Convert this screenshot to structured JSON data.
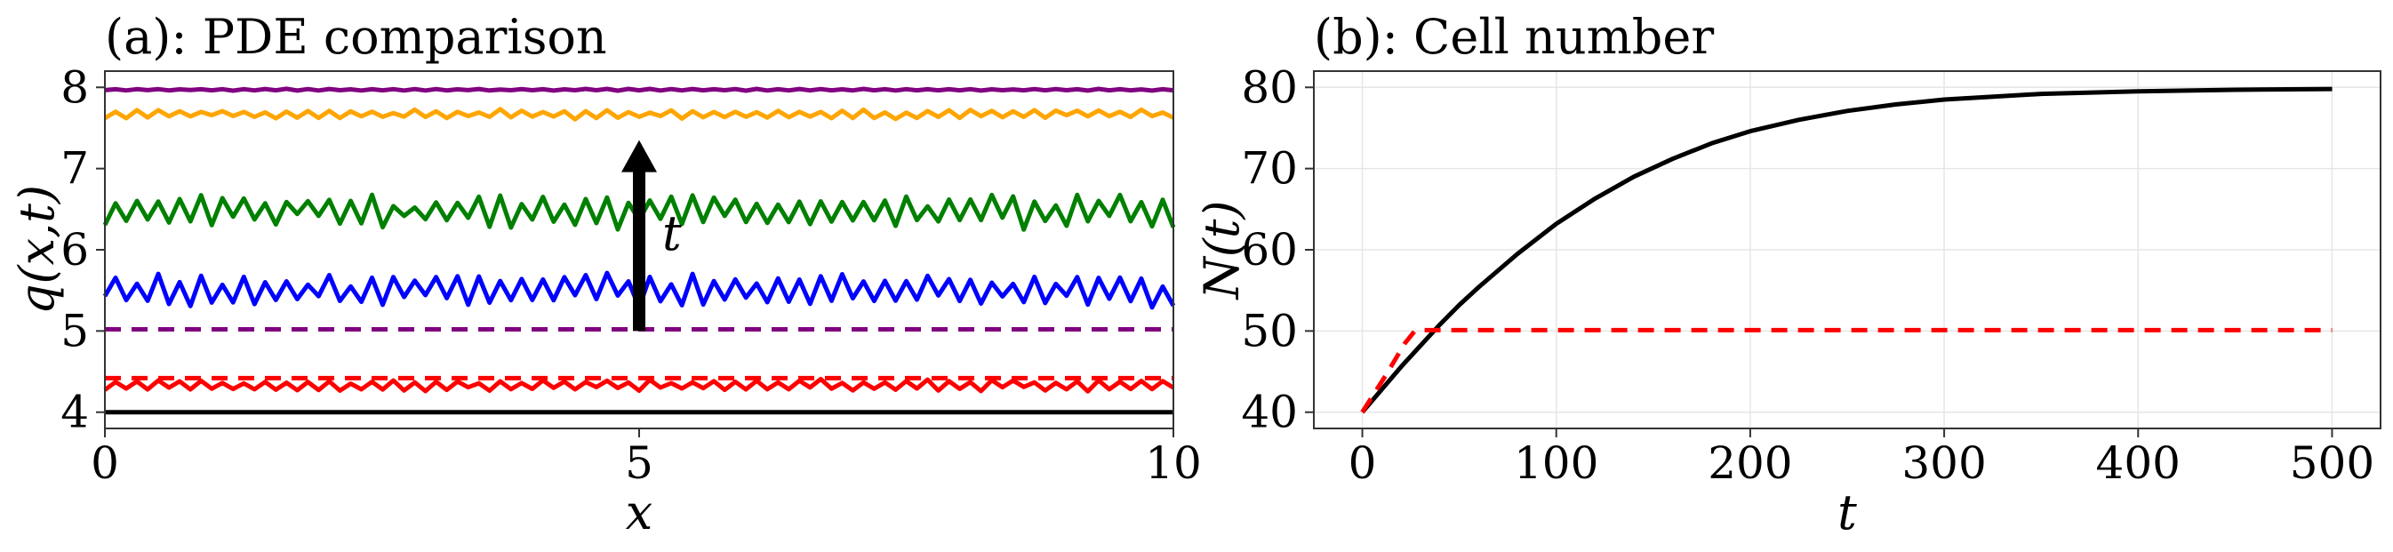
{
  "chart_data": [
    {
      "type": "line",
      "title": "(a): PDE comparison",
      "xlabel": "x",
      "ylabel": "q(x,t)",
      "xlim": [
        0,
        10
      ],
      "ylim": [
        3.8,
        8.2
      ],
      "xticks": [
        "0",
        "5",
        "10"
      ],
      "yticks": [
        "4",
        "5",
        "6",
        "7",
        "8"
      ],
      "grid": false,
      "annotation": {
        "text": "t",
        "arrow_from": [
          5,
          5.0
        ],
        "arrow_to": [
          5,
          7.35
        ]
      },
      "series": [
        {
          "style": "solid",
          "color": "#000000",
          "level": 4.0,
          "amplitude": 0.0,
          "seed": 1
        },
        {
          "style": "solid",
          "color": "#ff0000",
          "level": 4.33,
          "amplitude": 0.06,
          "seed": 2
        },
        {
          "style": "dashed",
          "color": "#ff0000",
          "level": 4.42,
          "amplitude": 0.0,
          "seed": 3
        },
        {
          "style": "solid",
          "color": "#0000ff",
          "level": 5.5,
          "amplitude": 0.18,
          "seed": 4
        },
        {
          "style": "dashed",
          "color": "#800080",
          "level": 5.02,
          "amplitude": 0.0,
          "seed": 5
        },
        {
          "style": "solid",
          "color": "#008000",
          "level": 6.48,
          "amplitude": 0.18,
          "seed": 6
        },
        {
          "style": "solid",
          "color": "#ffa500",
          "level": 7.67,
          "amplitude": 0.05,
          "seed": 7
        },
        {
          "style": "solid",
          "color": "#800080",
          "level": 7.97,
          "amplitude": 0.01,
          "seed": 8
        }
      ]
    },
    {
      "type": "line",
      "title": "(b): Cell number",
      "xlabel": "t",
      "ylabel": "N(t)",
      "xlim": [
        -25,
        525
      ],
      "ylim": [
        38,
        82
      ],
      "xticks": [
        0,
        100,
        200,
        300,
        400,
        500
      ],
      "yticks": [
        40,
        50,
        60,
        70,
        80
      ],
      "grid": true,
      "series": [
        {
          "style": "solid",
          "color": "#000000",
          "x": [
            0,
            10,
            20,
            30,
            40,
            50,
            60,
            80,
            100,
            120,
            140,
            160,
            180,
            200,
            225,
            250,
            275,
            300,
            350,
            400,
            450,
            500
          ],
          "y": [
            40.0,
            42.8,
            45.6,
            48.2,
            50.8,
            53.2,
            55.4,
            59.5,
            63.2,
            66.3,
            69.0,
            71.2,
            73.1,
            74.6,
            76.0,
            77.1,
            77.9,
            78.5,
            79.2,
            79.5,
            79.7,
            79.8
          ]
        },
        {
          "style": "dashed",
          "color": "#ff0000",
          "x": [
            0,
            12,
            22,
            27,
            32,
            40,
            100,
            200,
            300,
            400,
            500
          ],
          "y": [
            40.0,
            44.5,
            48.5,
            50.0,
            50.1,
            50.1,
            50.1,
            50.1,
            50.1,
            50.1,
            50.1
          ]
        }
      ]
    }
  ]
}
